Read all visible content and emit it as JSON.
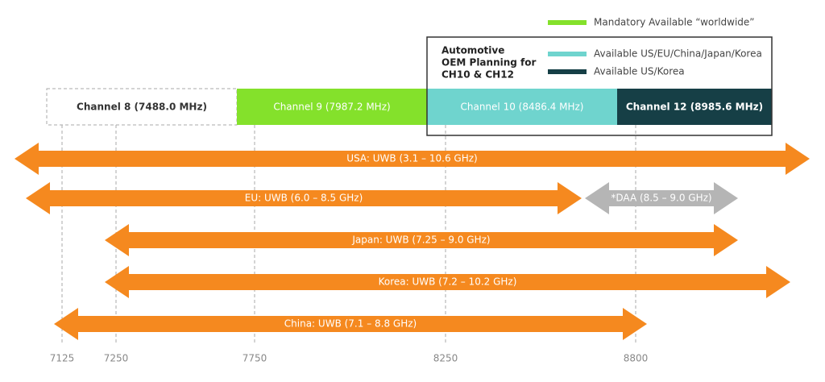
{
  "legend": {
    "box_title": [
      "Automotive",
      "OEM Planning for",
      "CH10 & CH12"
    ],
    "items": [
      "Mandatory Available “worldwide”",
      "Available US/EU/China/Japan/Korea",
      "Available US/Korea"
    ]
  },
  "channels": [
    "Channel 8 (7488.0 MHz)",
    "Channel 9 (7987.2 MHz)",
    "Channel 10 (8486.4 MHz)",
    "Channel 12 (8985.6 MHz)"
  ],
  "bands": [
    "USA: UWB (3.1 – 10.6 GHz)",
    "EU: UWB (6.0 – 8.5 GHz)",
    "*DAA (8.5 – 9.0 GHz)",
    "Japan: UWB (7.25 – 9.0 GHz)",
    "Korea: UWB (7.2 – 10.2 GHz)",
    "China: UWB (7.1 – 8.8 GHz)"
  ],
  "axis_labels": [
    "7125",
    "7250",
    "7750",
    "8250",
    "8800"
  ]
}
